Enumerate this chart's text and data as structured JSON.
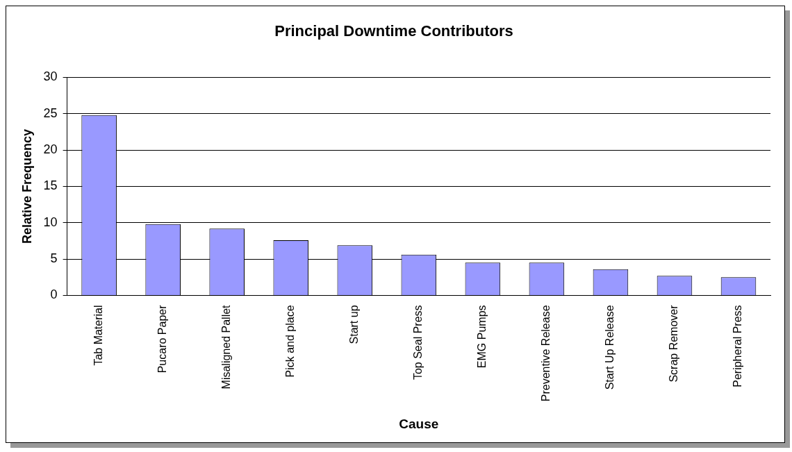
{
  "chart_data": {
    "type": "bar",
    "title": "Principal Downtime Contributors",
    "xlabel": "Cause",
    "ylabel": "Relative Frequency",
    "categories": [
      "Tab Material",
      "Pucaro Paper",
      "Misaligned Pallet",
      "Pick and place",
      "Start up",
      "Top Seal Press",
      "EMG Pumps",
      "Preventive Release",
      "Start Up Release",
      "Scrap Remover",
      "Peripheral Press"
    ],
    "values": [
      24.8,
      9.8,
      9.2,
      7.6,
      6.9,
      5.6,
      4.5,
      4.5,
      3.6,
      2.7,
      2.5
    ],
    "color": "#9999ff",
    "ylim": [
      0,
      30
    ],
    "yticks": [
      0,
      5,
      10,
      15,
      20,
      25,
      30
    ],
    "grid": "y",
    "legend": false
  }
}
